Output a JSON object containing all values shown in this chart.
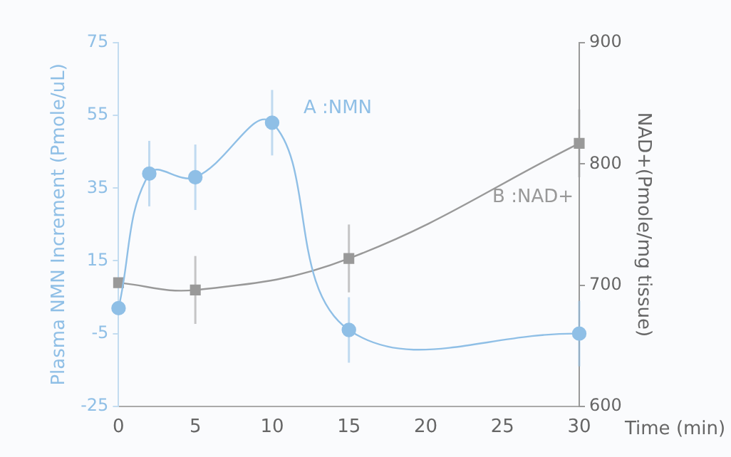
{
  "chart_data": {
    "type": "line",
    "xlabel": "Time (min)",
    "ylabel": "Plasma NMN Increment (Pmole/uL)",
    "y2label": "NAD+(Pmole/mg tissue)",
    "xlim": [
      0,
      30
    ],
    "xticks": [
      0,
      5,
      10,
      15,
      20,
      25,
      30
    ],
    "ylim": [
      -25,
      75
    ],
    "yticks": [
      -25,
      -5,
      15,
      35,
      55,
      75
    ],
    "y2lim": [
      600,
      900
    ],
    "y2ticks": [
      600,
      700,
      800,
      900
    ],
    "grid": false,
    "legend": false,
    "series": [
      {
        "name": "A :NMN",
        "color": "#8fbfe6",
        "marker": "circle",
        "x": [
          0,
          2,
          5,
          10,
          15,
          30
        ],
        "values": [
          2,
          39,
          38,
          53,
          -4,
          -5
        ],
        "errors": [
          null,
          9,
          9,
          9,
          9,
          9
        ]
      },
      {
        "name": "B :NAD+",
        "color": "#999999",
        "marker": "square",
        "axis": "y2",
        "x": [
          0,
          5,
          15,
          30
        ],
        "values": [
          702,
          696,
          722,
          817
        ],
        "errors": [
          null,
          28,
          28,
          28
        ]
      }
    ]
  }
}
